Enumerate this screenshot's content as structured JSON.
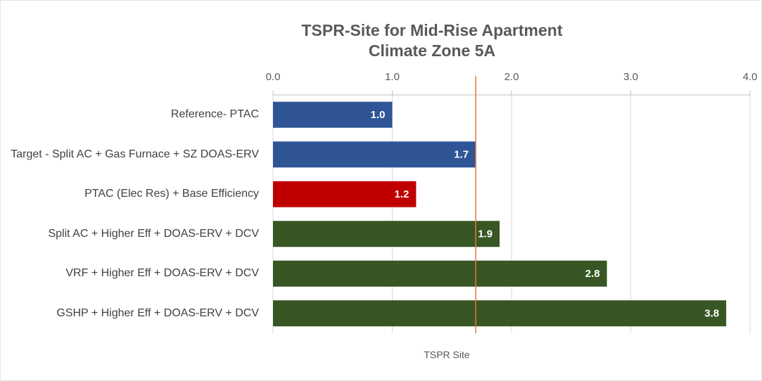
{
  "chart_data": {
    "type": "hbar",
    "title_lines": [
      "TSPR-Site for Mid-Rise Apartment",
      "Climate Zone 5A"
    ],
    "x_label": "TSPR Site",
    "categories": [
      "Reference- PTAC",
      "Target - Split AC + Gas Furnace + SZ DOAS-ERV",
      "PTAC (Elec Res) + Base Efficiency",
      "Split AC + Higher Eff +  DOAS-ERV + DCV",
      "VRF + Higher Eff + DOAS-ERV + DCV",
      "GSHP + Higher Eff + DOAS-ERV + DCV"
    ],
    "values": [
      1.0,
      1.7,
      1.2,
      1.9,
      2.8,
      3.8
    ],
    "value_labels": [
      "1.0",
      "1.7",
      "1.2",
      "1.9",
      "2.8",
      "3.8"
    ],
    "colors": [
      "#2f5597",
      "#2f5597",
      "#c00000",
      "#375623",
      "#375623",
      "#375623"
    ],
    "xlim": [
      0,
      4
    ],
    "xticks": [
      {
        "value": 0,
        "label": "0.0"
      },
      {
        "value": 1,
        "label": "1.0"
      },
      {
        "value": 2,
        "label": "2.0"
      },
      {
        "value": 3,
        "label": "3.0"
      },
      {
        "value": 4,
        "label": "4.0"
      }
    ],
    "grid": true,
    "reference_line": 1.7,
    "reference_color": "#e07b39"
  }
}
